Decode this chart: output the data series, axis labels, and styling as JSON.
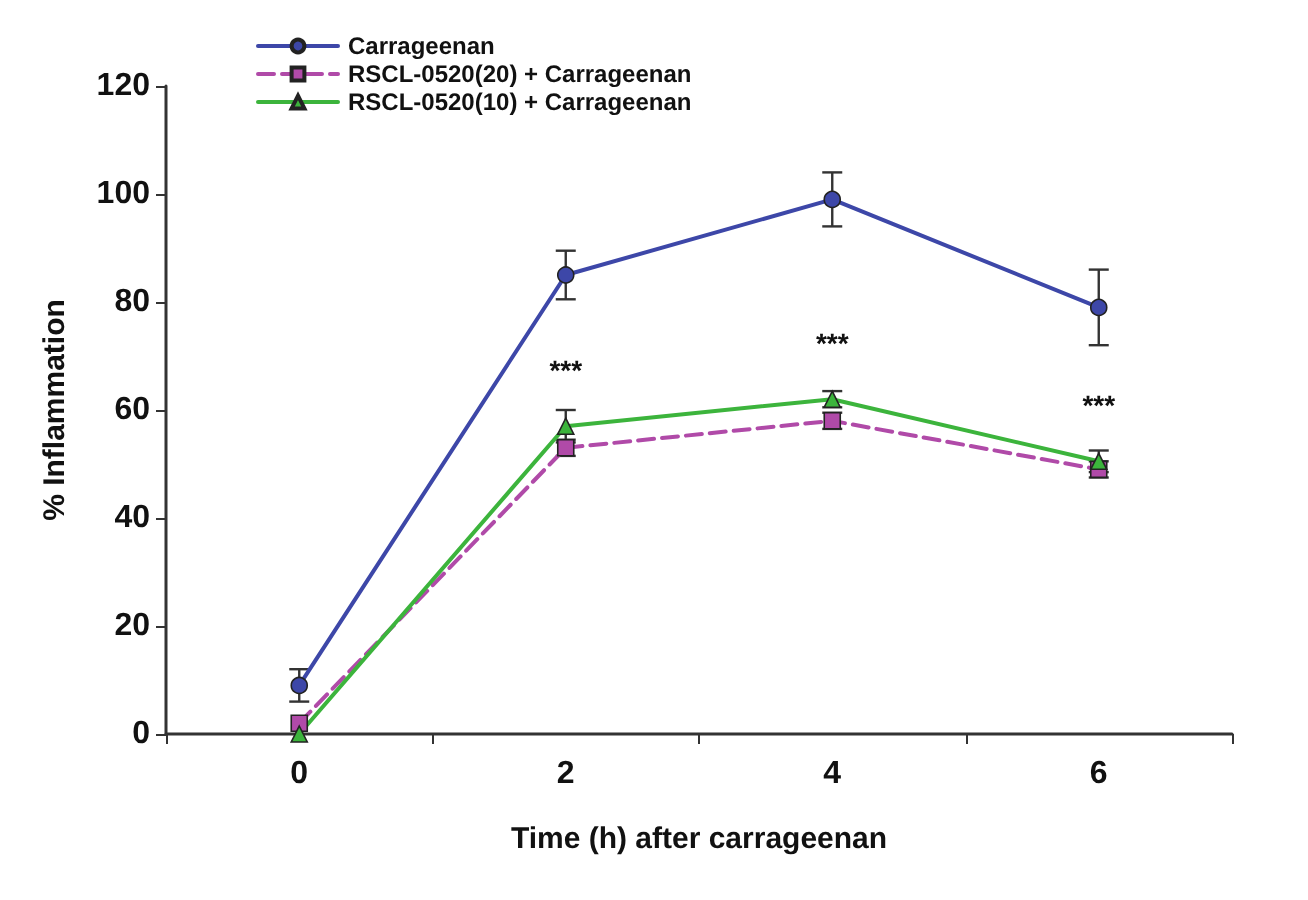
{
  "chart_data": {
    "type": "line",
    "xlabel": "Time (h) after carrageenan",
    "ylabel": "% Inflammation",
    "categories": [
      "0",
      "2",
      "4",
      "6"
    ],
    "series": [
      {
        "name": "Carrageenan",
        "color": "#3d47a8",
        "values": [
          9,
          85,
          99,
          79
        ],
        "errors": [
          3,
          4.5,
          5,
          7
        ],
        "marker": "circle",
        "line_style": "solid"
      },
      {
        "name": "RSCL-0520(20) + Carrageenan",
        "color": "#b04aa8",
        "values": [
          2,
          53,
          58,
          49
        ],
        "errors": [
          null,
          1.5,
          1.5,
          1.5
        ],
        "marker": "square",
        "line_style": "dashed"
      },
      {
        "name": "RSCL-0520(10) + Carrageenan",
        "color": "#3cb43c",
        "values": [
          0,
          57,
          62,
          50.5
        ],
        "errors": [
          null,
          3,
          1.5,
          2
        ],
        "marker": "triangle",
        "line_style": "solid"
      }
    ],
    "ylim": [
      0,
      120
    ],
    "yticks": [
      0,
      20,
      40,
      60,
      80,
      100,
      120
    ],
    "grid": false,
    "legend": "top left",
    "annotations": [
      {
        "text": "***",
        "x": "2",
        "y": 57
      },
      {
        "text": "***",
        "x": "4",
        "y": 62
      },
      {
        "text": "***",
        "x": "6",
        "y": 50.5
      }
    ]
  }
}
